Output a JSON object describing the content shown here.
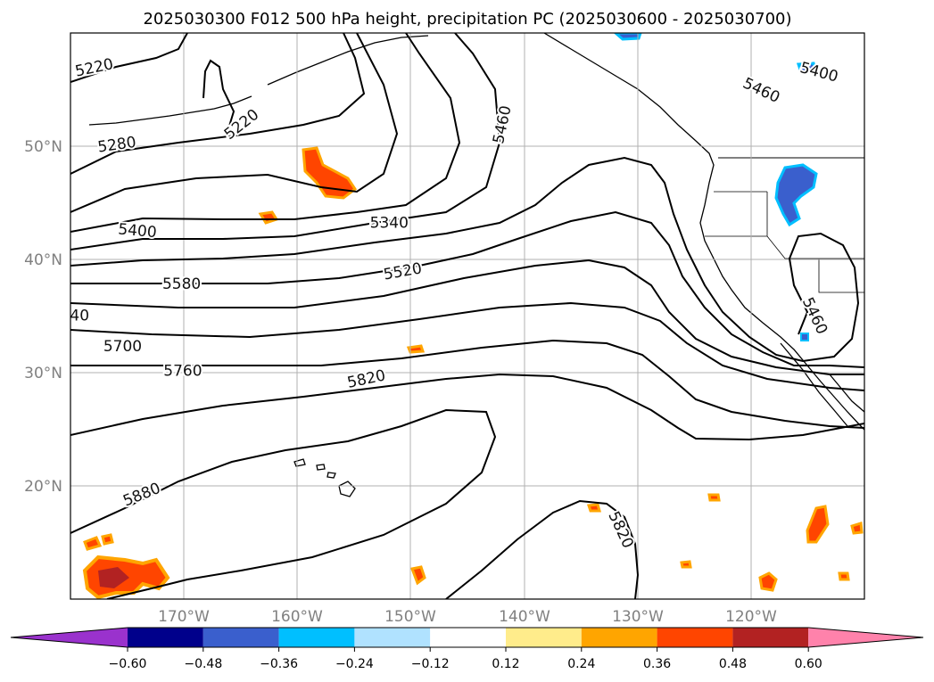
{
  "chart_data": {
    "type": "map-contour",
    "title": "2025030300 F012 500 hPa height, precipitation PC (2025030600 - 2025030700)",
    "lon_range": [
      -180,
      -110
    ],
    "lat_range": [
      10,
      60
    ],
    "lon_ticks": [
      "170°W",
      "160°W",
      "150°W",
      "140°W",
      "130°W",
      "120°W"
    ],
    "lat_ticks": [
      "20°N",
      "30°N",
      "40°N",
      "50°N"
    ],
    "grid": true,
    "contour_labels": [
      {
        "value": "5220",
        "lon": -177.9,
        "lat": 56.9,
        "rot": -12
      },
      {
        "value": "5220",
        "lon": -164.9,
        "lat": 51.9,
        "rot": -38
      },
      {
        "value": "5280",
        "lon": -175.9,
        "lat": 50.1,
        "rot": -8
      },
      {
        "value": "5340",
        "lon": -151.9,
        "lat": 43.2,
        "rot": 0
      },
      {
        "value": "5400",
        "lon": -174.1,
        "lat": 42.5,
        "rot": 5
      },
      {
        "value": "5400",
        "lon": -114.0,
        "lat": 56.5,
        "rot": 15
      },
      {
        "value": "5460",
        "lon": -141.9,
        "lat": 51.9,
        "rot": -78
      },
      {
        "value": "5460",
        "lon": -119.1,
        "lat": 54.9,
        "rot": 25
      },
      {
        "value": "5460",
        "lon": -114.4,
        "lat": 35.0,
        "rot": 65
      },
      {
        "value": "5520",
        "lon": -150.7,
        "lat": 38.9,
        "rot": -10
      },
      {
        "value": "5580",
        "lon": -170.2,
        "lat": 37.8,
        "rot": 0
      },
      {
        "value": "40",
        "lon": -179.2,
        "lat": 35.0,
        "rot": 0
      },
      {
        "value": "5700",
        "lon": -175.4,
        "lat": 32.3,
        "rot": 0
      },
      {
        "value": "5760",
        "lon": -170.1,
        "lat": 30.1,
        "rot": 0
      },
      {
        "value": "5820",
        "lon": -153.9,
        "lat": 29.4,
        "rot": -12
      },
      {
        "value": "5880",
        "lon": -173.7,
        "lat": 19.2,
        "rot": -22
      },
      {
        "value": "5820",
        "lon": -131.5,
        "lat": 16.1,
        "rot": 65
      }
    ],
    "colorbar": {
      "ticks": [
        "−0.60",
        "−0.48",
        "−0.36",
        "−0.24",
        "−0.12",
        "0.12",
        "0.24",
        "0.36",
        "0.48",
        "0.60"
      ],
      "colors": [
        "#9a32cd",
        "#00008b",
        "#3a5fcd",
        "#00bfff",
        "#b0e2ff",
        "#ffffff",
        "#ffec8b",
        "#ffa500",
        "#ff4500",
        "#b22222",
        "#ff82ab"
      ],
      "extend": "both"
    }
  }
}
